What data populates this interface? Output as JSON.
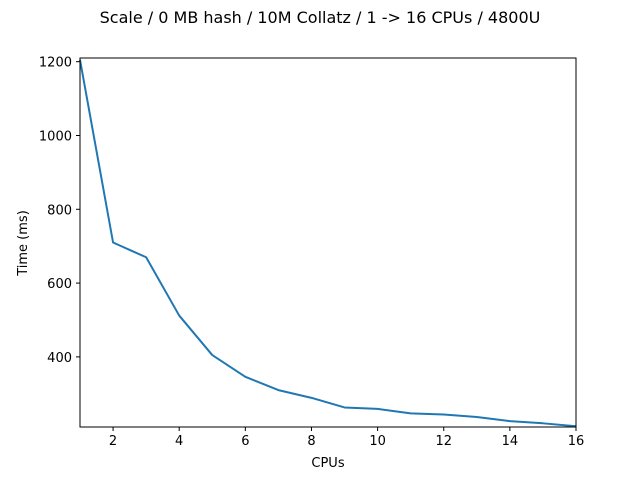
{
  "chart_data": {
    "type": "line",
    "title": "Scale / 0 MB hash / 10M Collatz / 1 -> 16 CPUs / 4800U",
    "xlabel": "CPUs",
    "ylabel": "Time (ms)",
    "xlim": [
      1,
      16
    ],
    "ylim": [
      210,
      1210
    ],
    "xticks": [
      2,
      4,
      6,
      8,
      10,
      12,
      14,
      16
    ],
    "yticks": [
      400,
      600,
      800,
      1000,
      1200
    ],
    "grid": false,
    "series_color": "#1f77b4",
    "series": [
      {
        "x": [
          1,
          2,
          3,
          4,
          5,
          6,
          7,
          8,
          9,
          10,
          11,
          12,
          13,
          14,
          15,
          16
        ],
        "values": [
          1205,
          710,
          670,
          512,
          405,
          346,
          310,
          289,
          263,
          259,
          247,
          244,
          237,
          226,
          220,
          212
        ]
      }
    ]
  }
}
